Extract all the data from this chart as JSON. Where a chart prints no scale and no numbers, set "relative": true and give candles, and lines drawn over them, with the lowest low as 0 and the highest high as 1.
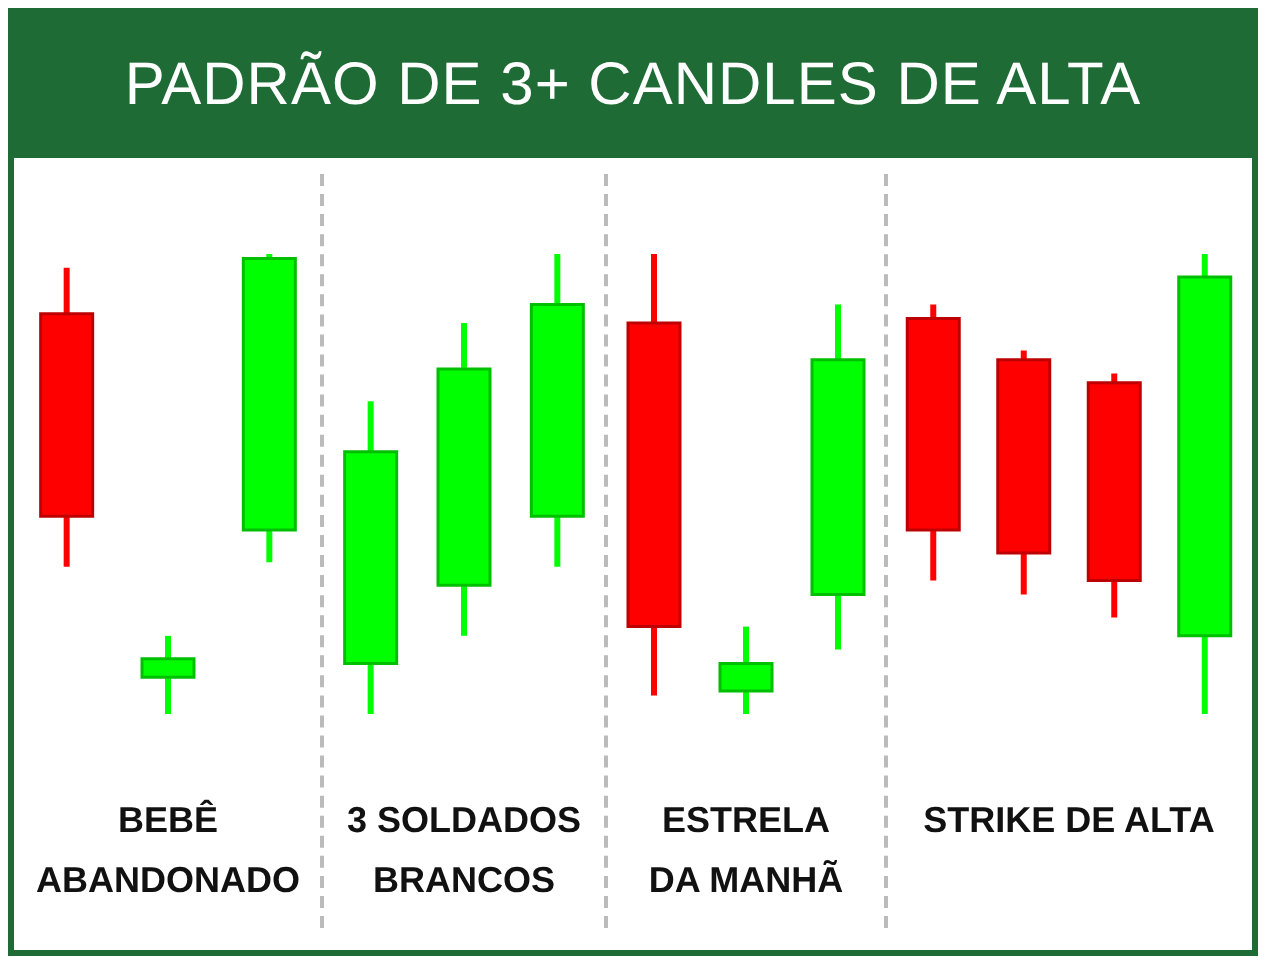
{
  "chart_data": [
    {
      "type": "other",
      "title": "PADRÃO DE 3+ CANDLES DE ALTA"
    },
    {
      "type": "candlestick",
      "xlabel": "BEBÊ ABANDONADO",
      "relative": true,
      "tick_labels": false,
      "categories": [
        null,
        null,
        null
      ],
      "ohlc": [
        [
          0.87,
          0.97,
          0.32,
          0.43
        ],
        [
          0.08,
          0.17,
          0,
          0.12
        ],
        [
          0.4,
          1,
          0.33,
          0.99
        ]
      ],
      "colors": [
        "#ff0000",
        "#00ff00",
        "#00ff00"
      ]
    },
    {
      "type": "candlestick",
      "xlabel": "3 SOLDADOS BRANCOS",
      "relative": true,
      "tick_labels": false,
      "categories": [
        null,
        null,
        null
      ],
      "ohlc": [
        [
          0.11,
          0.68,
          0,
          0.57
        ],
        [
          0.28,
          0.85,
          0.17,
          0.75
        ],
        [
          0.43,
          1,
          0.32,
          0.89
        ]
      ],
      "colors": [
        "#00ff00",
        "#00ff00",
        "#00ff00"
      ]
    },
    {
      "type": "candlestick",
      "xlabel": "ESTRELA DA MANHÃ",
      "relative": true,
      "tick_labels": false,
      "categories": [
        null,
        null,
        null
      ],
      "ohlc": [
        [
          0.85,
          1,
          0.04,
          0.19
        ],
        [
          0.05,
          0.19,
          0,
          0.11
        ],
        [
          0.26,
          0.89,
          0.14,
          0.77
        ]
      ],
      "colors": [
        "#ff0000",
        "#00ff00",
        "#00ff00"
      ]
    },
    {
      "type": "candlestick",
      "xlabel": "STRIKE DE ALTA",
      "relative": true,
      "tick_labels": false,
      "categories": [
        null,
        null,
        null,
        null
      ],
      "ohlc": [
        [
          0.86,
          0.89,
          0.29,
          0.4
        ],
        [
          0.77,
          0.79,
          0.26,
          0.35
        ],
        [
          0.72,
          0.74,
          0.21,
          0.29
        ],
        [
          0.17,
          1,
          0,
          0.95
        ]
      ],
      "colors": [
        "#ff0000",
        "#ff0000",
        "#ff0000",
        "#00ff00"
      ]
    }
  ]
}
